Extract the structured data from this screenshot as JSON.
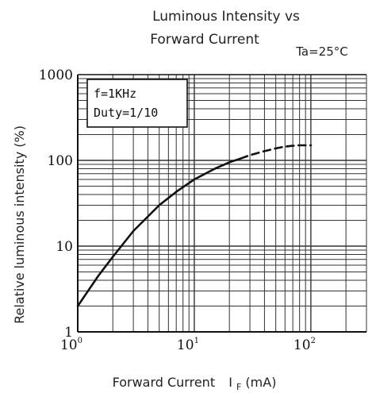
{
  "chart_data": {
    "type": "line",
    "title_line1": "Luminous Intensity vs",
    "title_line2": "Forward Current",
    "condition": "Ta=25°C",
    "xlabel_main": "Forward Current",
    "xlabel_symbol": "I",
    "xlabel_sub": "F",
    "xlabel_unit": "(mA)",
    "ylabel": "Relative luminous intensity   (%)",
    "x_scale": "log",
    "y_scale": "log",
    "xlim": [
      1,
      300
    ],
    "ylim": [
      1,
      1000
    ],
    "grid": true,
    "y_ticks": [
      {
        "value": 1,
        "label": "1"
      },
      {
        "value": 10,
        "label": "10"
      },
      {
        "value": 100,
        "label": "100"
      },
      {
        "value": 1000,
        "label": "1000"
      }
    ],
    "x_ticks": [
      {
        "value": 1,
        "base": "10",
        "exp": "0"
      },
      {
        "value": 10,
        "base": "10",
        "exp": "1"
      },
      {
        "value": 100,
        "base": "10",
        "exp": "2"
      }
    ],
    "legend_box": {
      "lines": [
        "f=1KHz",
        "Duty=1/10"
      ],
      "placement": "top-left"
    },
    "series": [
      {
        "style": "solid",
        "color": "#111111",
        "x": [
          1,
          1.5,
          2,
          3,
          5,
          7,
          10,
          15,
          20,
          25
        ],
        "y": [
          2,
          4.5,
          7.5,
          15,
          30,
          43,
          60,
          80,
          95,
          105
        ]
      },
      {
        "style": "dashed",
        "color": "#111111",
        "x": [
          25,
          30,
          40,
          50,
          60,
          70,
          80,
          100
        ],
        "y": [
          105,
          115,
          128,
          138,
          145,
          148,
          150,
          150
        ]
      }
    ]
  }
}
